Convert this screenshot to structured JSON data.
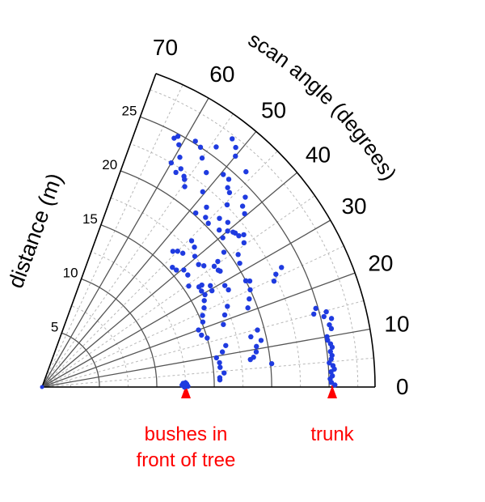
{
  "chart_data": {
    "type": "scatter",
    "coordinate_system": "polar",
    "radial_axis": {
      "label": "distance (m)",
      "range": [
        0,
        29
      ],
      "ticks": [
        5,
        10,
        15,
        20,
        25
      ]
    },
    "angular_axis": {
      "label": "scan angle (degrees)",
      "range": [
        0,
        70
      ],
      "ticks": [
        0,
        10,
        20,
        30,
        40,
        50,
        60,
        70
      ]
    },
    "grid": true,
    "annotations": [
      {
        "text_lines": [
          "bushes in",
          "front of tree"
        ],
        "angle": 0,
        "distance": 12.5
      },
      {
        "text_lines": [
          "trunk"
        ],
        "angle": 0,
        "distance": 25.3
      }
    ],
    "series": [
      {
        "color": "#1f3be0",
        "points": [
          [
            0,
            12.4
          ],
          [
            0.5,
            12.4
          ],
          [
            1,
            12.4
          ],
          [
            1.5,
            12.3
          ],
          [
            1.2,
            12.6
          ],
          [
            0.3,
            12.7
          ],
          [
            0.8,
            12.2
          ],
          [
            1.7,
            12.5
          ],
          [
            0.4,
            25.5
          ],
          [
            0.9,
            25.2
          ],
          [
            1.6,
            25.1
          ],
          [
            2.2,
            25.3
          ],
          [
            3,
            25.2
          ],
          [
            3.5,
            25.5
          ],
          [
            4.2,
            25.4
          ],
          [
            4.8,
            25.1
          ],
          [
            5.5,
            25.3
          ],
          [
            6.2,
            25.4
          ],
          [
            7,
            25.3
          ],
          [
            7.8,
            25.5
          ],
          [
            8.5,
            25.4
          ],
          [
            9.3,
            25.2
          ],
          [
            10,
            25.2
          ],
          [
            11.4,
            25.7
          ],
          [
            12.2,
            25.6
          ],
          [
            13.3,
            25.9
          ],
          [
            14,
            25.3
          ],
          [
            14.8,
            25.6
          ],
          [
            15,
            24.5
          ],
          [
            16,
            24.8
          ],
          [
            2.3,
            15.5
          ],
          [
            3,
            15.5
          ],
          [
            4.4,
            15.9
          ],
          [
            6.3,
            15.6
          ],
          [
            7.8,
            15.6
          ],
          [
            9.5,
            15.4
          ],
          [
            11,
            16
          ],
          [
            12.7,
            16.4
          ],
          [
            13.5,
            18.7
          ],
          [
            14.8,
            19.4
          ],
          [
            8,
            18.6
          ],
          [
            9.3,
            18.9
          ],
          [
            10.7,
            19
          ],
          [
            12,
            19.5
          ],
          [
            5.8,
            20.1
          ],
          [
            7.5,
            18.3
          ],
          [
            20,
            14.5
          ],
          [
            22,
            15.1
          ],
          [
            24,
            15.3
          ],
          [
            26,
            15.7
          ],
          [
            28,
            16
          ],
          [
            29.5,
            16.3
          ],
          [
            31,
            16.2
          ],
          [
            32.5,
            16.5
          ],
          [
            19,
            16.7
          ],
          [
            21.5,
            17.1
          ],
          [
            23.5,
            17.6
          ],
          [
            16.5,
            15
          ],
          [
            18,
            14.6
          ],
          [
            21,
            19.2
          ],
          [
            23,
            19.6
          ],
          [
            25,
            20
          ],
          [
            27,
            20.3
          ],
          [
            24.5,
            22.2
          ],
          [
            25.7,
            22.6
          ],
          [
            27.5,
            20
          ],
          [
            26.5,
            23.3
          ],
          [
            32,
            20.3
          ],
          [
            34,
            20.6
          ],
          [
            35.5,
            21.6
          ],
          [
            37,
            22
          ],
          [
            38.5,
            21.5
          ],
          [
            40.5,
            23.2
          ],
          [
            42,
            23.5
          ],
          [
            43,
            24.2
          ],
          [
            33.5,
            18.4
          ],
          [
            35.5,
            18.8
          ],
          [
            36.5,
            19.7
          ],
          [
            39.5,
            20.4
          ],
          [
            41.5,
            21.6
          ],
          [
            44.5,
            22.6
          ],
          [
            46,
            23.5
          ],
          [
            47,
            23.7
          ],
          [
            48,
            24.3
          ],
          [
            46.5,
            25.8
          ],
          [
            49.5,
            24.3
          ],
          [
            50,
            26.2
          ],
          [
            51,
            26.8
          ],
          [
            52.5,
            27.2
          ],
          [
            54,
            25.8
          ],
          [
            55,
            24.3
          ],
          [
            56.5,
            25
          ],
          [
            58,
            25.2
          ],
          [
            56,
            22.1
          ],
          [
            54.5,
            21.4
          ],
          [
            52.5,
            23.5
          ],
          [
            50.5,
            22
          ],
          [
            48.5,
            20.2
          ],
          [
            47.5,
            21.2
          ],
          [
            46,
            20.5
          ],
          [
            44.5,
            20.3
          ],
          [
            43.5,
            21.3
          ],
          [
            41.5,
            20.6
          ],
          [
            40,
            21.1
          ],
          [
            39,
            21.4
          ],
          [
            37.5,
            21.6
          ],
          [
            46,
            16.4
          ],
          [
            45,
            16.7
          ],
          [
            43.5,
            16.9
          ],
          [
            44.3,
            18.2
          ],
          [
            42.5,
            18
          ],
          [
            40.5,
            17.5
          ],
          [
            38,
            17.3
          ],
          [
            36.8,
            17.6
          ],
          [
            35,
            18.3
          ],
          [
            33,
            18.5
          ],
          [
            42.5,
            15.4
          ],
          [
            41,
            15.5
          ],
          [
            39.5,
            16
          ],
          [
            37.5,
            16
          ],
          [
            34.5,
            15.5
          ],
          [
            32.5,
            16.2
          ],
          [
            31,
            17.1
          ],
          [
            29.5,
            17
          ],
          [
            29,
            18.2
          ],
          [
            27.5,
            18.3
          ],
          [
            55.5,
            21.9
          ],
          [
            57.5,
            22.5
          ],
          [
            59,
            23.3
          ],
          [
            60.5,
            24.2
          ],
          [
            62,
            24.5
          ],
          [
            61.5,
            24.8
          ],
          [
            60,
            22.5
          ],
          [
            58,
            22
          ]
        ]
      }
    ]
  }
}
